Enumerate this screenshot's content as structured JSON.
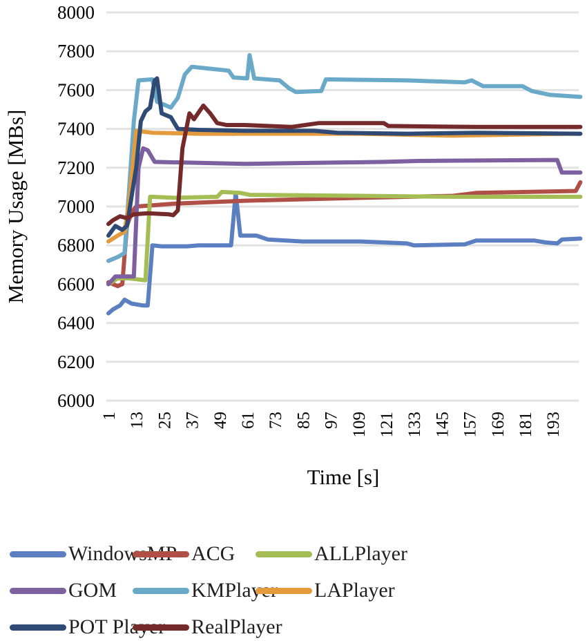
{
  "chart_data": {
    "type": "line",
    "title": "",
    "xlabel": "Time [s]",
    "ylabel": "Memory Usage [MBs]",
    "ylim": [
      6000,
      8000
    ],
    "xlim": [
      1,
      205
    ],
    "grid": true,
    "legend_position": "bottom",
    "y_ticks": [
      "6000",
      "6200",
      "6400",
      "6600",
      "6800",
      "7000",
      "7200",
      "7400",
      "7600",
      "7800",
      "8000"
    ],
    "y_tick_values": [
      6000,
      6200,
      6400,
      6600,
      6800,
      7000,
      7200,
      7400,
      7600,
      7800,
      8000
    ],
    "x_ticks": [
      "1",
      "13",
      "25",
      "37",
      "49",
      "61",
      "73",
      "85",
      "97",
      "109",
      "121",
      "133",
      "145",
      "157",
      "169",
      "181",
      "193"
    ],
    "x_tick_values": [
      1,
      13,
      25,
      37,
      49,
      61,
      73,
      85,
      97,
      109,
      121,
      133,
      145,
      157,
      169,
      181,
      193
    ],
    "series": [
      {
        "name": "WindowsMP",
        "color": "#5b7fc0",
        "points": [
          [
            1,
            6450
          ],
          [
            3,
            6470
          ],
          [
            6,
            6490
          ],
          [
            8,
            6520
          ],
          [
            11,
            6500
          ],
          [
            16,
            6490
          ],
          [
            18,
            6490
          ],
          [
            20,
            6800
          ],
          [
            24,
            6795
          ],
          [
            35,
            6795
          ],
          [
            40,
            6800
          ],
          [
            54,
            6800
          ],
          [
            56,
            7070
          ],
          [
            58,
            6850
          ],
          [
            65,
            6850
          ],
          [
            70,
            6830
          ],
          [
            85,
            6820
          ],
          [
            110,
            6820
          ],
          [
            130,
            6810
          ],
          [
            133,
            6800
          ],
          [
            155,
            6805
          ],
          [
            160,
            6825
          ],
          [
            185,
            6825
          ],
          [
            190,
            6815
          ],
          [
            195,
            6810
          ],
          [
            197,
            6830
          ],
          [
            205,
            6835
          ]
        ]
      },
      {
        "name": "ACG",
        "color": "#b04f46",
        "points": [
          [
            1,
            6610
          ],
          [
            5,
            6590
          ],
          [
            7,
            6600
          ],
          [
            9,
            6900
          ],
          [
            11,
            6970
          ],
          [
            13,
            7000
          ],
          [
            30,
            7015
          ],
          [
            60,
            7030
          ],
          [
            110,
            7045
          ],
          [
            150,
            7055
          ],
          [
            160,
            7070
          ],
          [
            203,
            7080
          ],
          [
            205,
            7125
          ]
        ]
      },
      {
        "name": "ALLPlayer",
        "color": "#a4bd55",
        "points": [
          [
            1,
            6600
          ],
          [
            5,
            6630
          ],
          [
            10,
            6630
          ],
          [
            17,
            6620
          ],
          [
            19,
            7050
          ],
          [
            30,
            7045
          ],
          [
            48,
            7050
          ],
          [
            50,
            7075
          ],
          [
            58,
            7070
          ],
          [
            62,
            7060
          ],
          [
            110,
            7055
          ],
          [
            150,
            7050
          ],
          [
            203,
            7050
          ],
          [
            205,
            7050
          ]
        ]
      },
      {
        "name": "GOM",
        "color": "#7c60a0",
        "points": [
          [
            1,
            6600
          ],
          [
            4,
            6640
          ],
          [
            8,
            6640
          ],
          [
            12,
            6640
          ],
          [
            14,
            7200
          ],
          [
            16,
            7300
          ],
          [
            18,
            7290
          ],
          [
            21,
            7230
          ],
          [
            40,
            7225
          ],
          [
            60,
            7220
          ],
          [
            90,
            7225
          ],
          [
            120,
            7230
          ],
          [
            135,
            7235
          ],
          [
            195,
            7240
          ],
          [
            197,
            7175
          ],
          [
            205,
            7175
          ]
        ]
      },
      {
        "name": "KMPlayer",
        "color": "#6aaac8",
        "points": [
          [
            1,
            6720
          ],
          [
            5,
            6740
          ],
          [
            8,
            6760
          ],
          [
            10,
            7100
          ],
          [
            12,
            7440
          ],
          [
            14,
            7650
          ],
          [
            20,
            7655
          ],
          [
            22,
            7540
          ],
          [
            28,
            7510
          ],
          [
            31,
            7560
          ],
          [
            34,
            7680
          ],
          [
            37,
            7720
          ],
          [
            45,
            7710
          ],
          [
            53,
            7700
          ],
          [
            55,
            7665
          ],
          [
            61,
            7660
          ],
          [
            62,
            7780
          ],
          [
            64,
            7660
          ],
          [
            75,
            7650
          ],
          [
            79,
            7610
          ],
          [
            82,
            7590
          ],
          [
            93,
            7595
          ],
          [
            95,
            7655
          ],
          [
            130,
            7650
          ],
          [
            155,
            7640
          ],
          [
            158,
            7650
          ],
          [
            163,
            7620
          ],
          [
            180,
            7620
          ],
          [
            184,
            7595
          ],
          [
            192,
            7575
          ],
          [
            205,
            7565
          ]
        ]
      },
      {
        "name": "LAPlayer",
        "color": "#e39b3e",
        "points": [
          [
            1,
            6820
          ],
          [
            5,
            6850
          ],
          [
            8,
            6870
          ],
          [
            10,
            7030
          ],
          [
            13,
            7390
          ],
          [
            20,
            7380
          ],
          [
            40,
            7375
          ],
          [
            80,
            7375
          ],
          [
            110,
            7375
          ],
          [
            150,
            7365
          ],
          [
            200,
            7375
          ],
          [
            205,
            7375
          ]
        ]
      },
      {
        "name": "POT Player",
        "color": "#2f4a74",
        "points": [
          [
            1,
            6850
          ],
          [
            4,
            6900
          ],
          [
            7,
            6880
          ],
          [
            9,
            6900
          ],
          [
            11,
            7050
          ],
          [
            13,
            7200
          ],
          [
            15,
            7440
          ],
          [
            17,
            7490
          ],
          [
            19,
            7510
          ],
          [
            21,
            7650
          ],
          [
            22,
            7660
          ],
          [
            24,
            7480
          ],
          [
            28,
            7460
          ],
          [
            31,
            7400
          ],
          [
            40,
            7395
          ],
          [
            60,
            7390
          ],
          [
            90,
            7390
          ],
          [
            100,
            7380
          ],
          [
            130,
            7375
          ],
          [
            160,
            7380
          ],
          [
            205,
            7375
          ]
        ]
      },
      {
        "name": "RealPlayer",
        "color": "#74292b",
        "points": [
          [
            1,
            6910
          ],
          [
            3,
            6930
          ],
          [
            6,
            6950
          ],
          [
            9,
            6940
          ],
          [
            12,
            6960
          ],
          [
            18,
            6965
          ],
          [
            27,
            6960
          ],
          [
            29,
            6955
          ],
          [
            31,
            6980
          ],
          [
            33,
            7300
          ],
          [
            36,
            7480
          ],
          [
            38,
            7450
          ],
          [
            42,
            7520
          ],
          [
            45,
            7480
          ],
          [
            48,
            7430
          ],
          [
            52,
            7420
          ],
          [
            60,
            7420
          ],
          [
            70,
            7415
          ],
          [
            80,
            7410
          ],
          [
            92,
            7430
          ],
          [
            120,
            7430
          ],
          [
            122,
            7415
          ],
          [
            160,
            7410
          ],
          [
            205,
            7410
          ]
        ]
      }
    ]
  },
  "legend": {
    "items": [
      "WindowsMP",
      "ACG",
      "ALLPlayer",
      "GOM",
      "KMPlayer",
      "LAPlayer",
      "POT Player",
      "RealPlayer"
    ]
  }
}
